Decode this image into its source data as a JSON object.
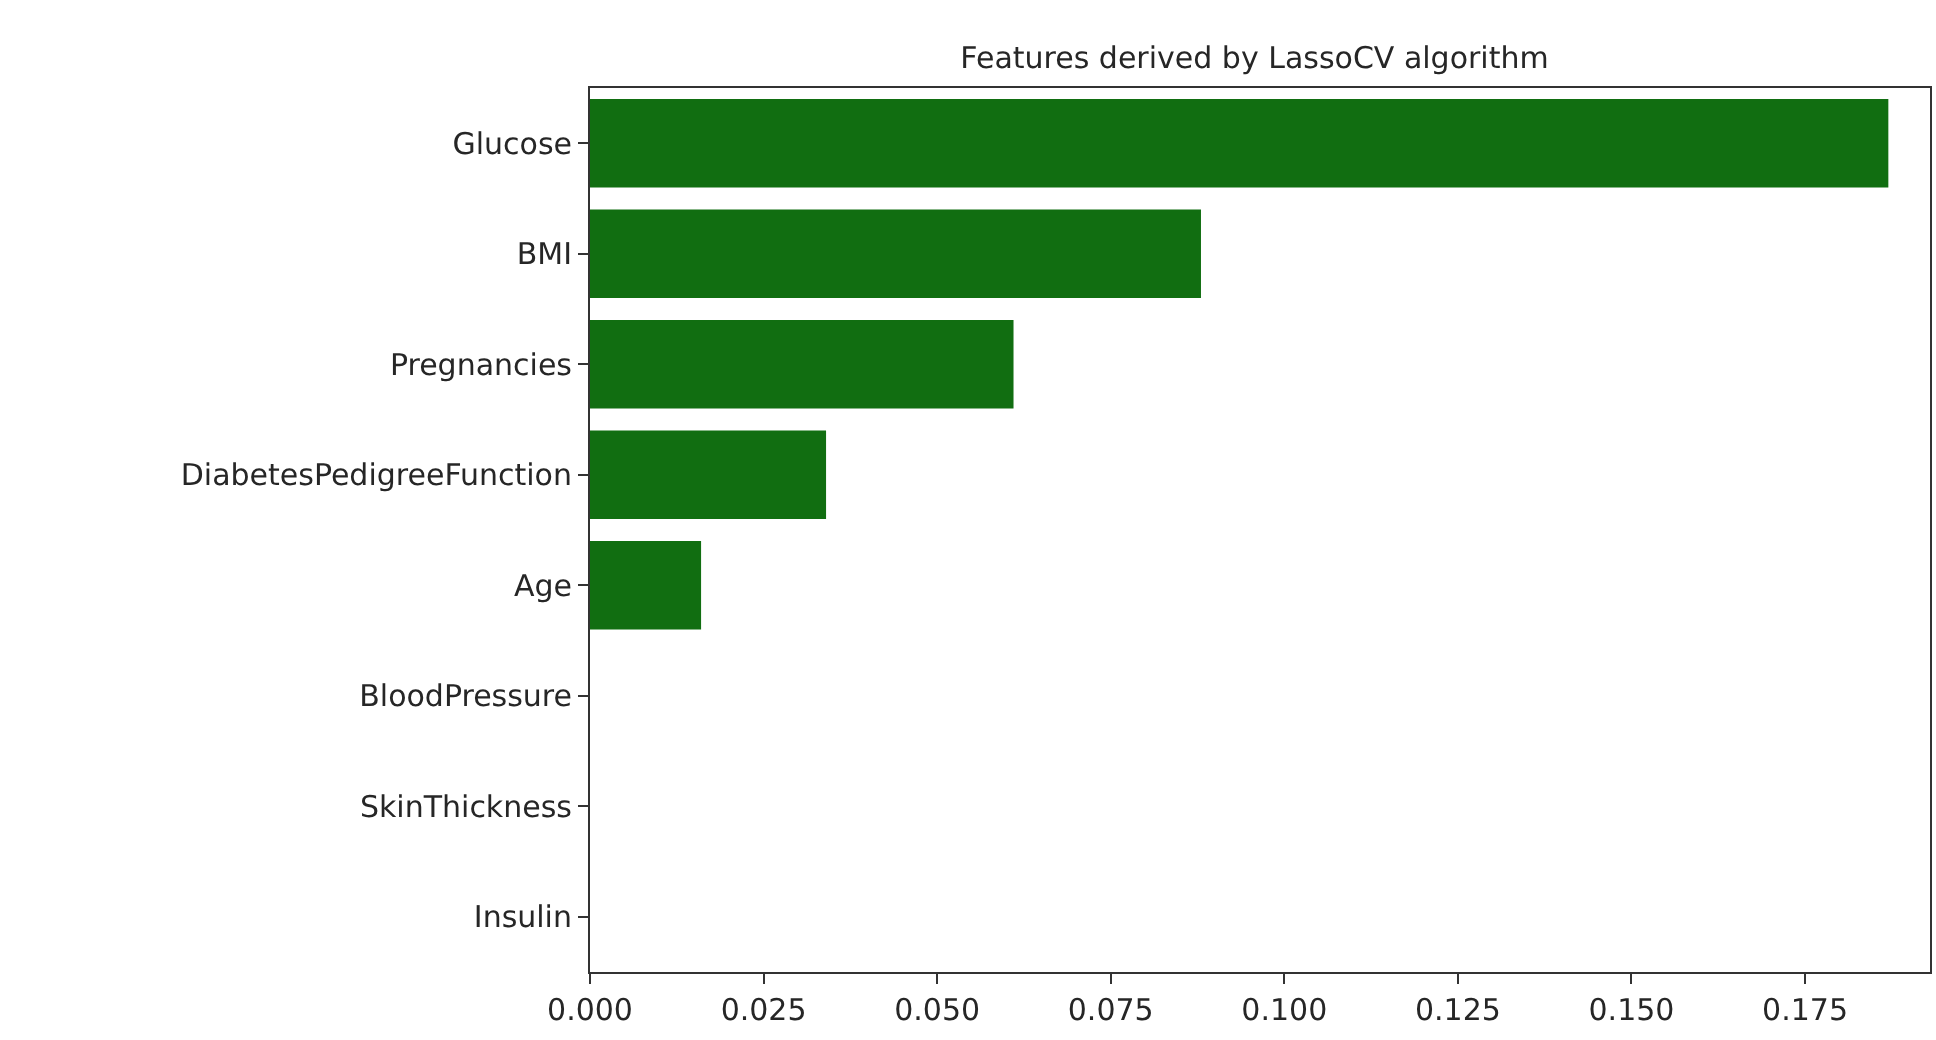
{
  "chart_data": {
    "type": "bar",
    "orientation": "horizontal",
    "title": "Features derived by LassoCV algorithm",
    "categories": [
      "Glucose",
      "BMI",
      "Pregnancies",
      "DiabetesPedigreeFunction",
      "Age",
      "BloodPressure",
      "SkinThickness",
      "Insulin"
    ],
    "values": [
      0.187,
      0.088,
      0.061,
      0.034,
      0.016,
      0,
      0,
      0
    ],
    "color": "#116e11",
    "xlim": [
      0,
      0.193
    ],
    "xticks": [
      {
        "value": 0,
        "label": "0.000"
      },
      {
        "value": 0.025,
        "label": "0.025"
      },
      {
        "value": 0.05,
        "label": "0.050"
      },
      {
        "value": 0.075,
        "label": "0.075"
      },
      {
        "value": 0.1,
        "label": "0.100"
      },
      {
        "value": 0.125,
        "label": "0.125"
      },
      {
        "value": 0.15,
        "label": "0.150"
      },
      {
        "value": 0.175,
        "label": "0.175"
      }
    ],
    "grid": false
  }
}
